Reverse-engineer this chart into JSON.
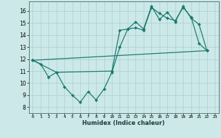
{
  "title": "",
  "xlabel": "Humidex (Indice chaleur)",
  "ylabel": "",
  "background_color": "#cce8e8",
  "grid_color": "#aacfcf",
  "line_color": "#1a7a6e",
  "xlim": [
    -0.5,
    23.5
  ],
  "ylim": [
    7.5,
    16.8
  ],
  "xticks": [
    0,
    1,
    2,
    3,
    4,
    5,
    6,
    7,
    8,
    9,
    10,
    11,
    12,
    13,
    14,
    15,
    16,
    17,
    18,
    19,
    20,
    21,
    22,
    23
  ],
  "yticks": [
    8,
    9,
    10,
    11,
    12,
    13,
    14,
    15,
    16
  ],
  "series1_x": [
    0,
    1,
    2,
    3,
    4,
    5,
    6,
    7,
    8,
    9,
    10,
    11,
    12,
    13,
    14,
    15,
    16,
    17,
    18,
    19,
    20,
    21,
    22
  ],
  "series1_y": [
    11.9,
    11.6,
    10.5,
    10.9,
    9.7,
    9.0,
    8.4,
    9.3,
    8.6,
    9.5,
    10.9,
    13.0,
    14.5,
    14.6,
    14.4,
    16.3,
    15.8,
    15.4,
    15.2,
    16.3,
    15.5,
    13.3,
    12.7
  ],
  "series2_x": [
    0,
    3,
    10,
    11,
    12,
    13,
    14,
    15,
    16,
    17,
    18,
    19,
    20,
    21,
    22
  ],
  "series2_y": [
    11.9,
    10.9,
    11.0,
    14.4,
    14.5,
    15.1,
    14.5,
    16.4,
    15.3,
    15.9,
    15.1,
    16.4,
    15.4,
    14.9,
    12.7
  ],
  "series3_x": [
    0,
    22
  ],
  "series3_y": [
    11.9,
    12.7
  ],
  "marker_size": 2.5,
  "linewidth": 0.9
}
